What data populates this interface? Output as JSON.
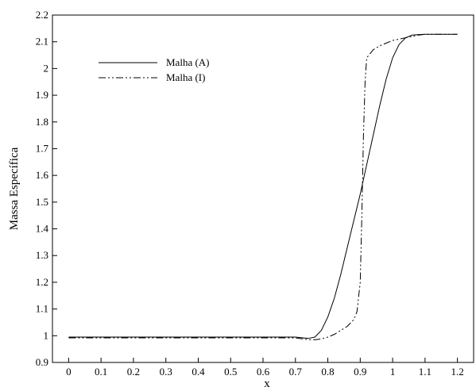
{
  "chart_data": {
    "type": "line",
    "title": "",
    "xlabel": "x",
    "ylabel": "Massa Específica",
    "xlim": [
      -0.05,
      1.25
    ],
    "ylim": [
      0.9,
      2.2
    ],
    "x_ticks": [
      "0",
      "0.1",
      "0.2",
      "0.3",
      "0.4",
      "0.5",
      "0.6",
      "0.7",
      "0.8",
      "0.9",
      "1",
      "1.1",
      "1.2"
    ],
    "y_ticks": [
      "0.9",
      "1",
      "1.1",
      "1.2",
      "1.3",
      "1.4",
      "1.5",
      "1.6",
      "1.7",
      "1.8",
      "1.9",
      "2",
      "2.1",
      "2.2"
    ],
    "grid": false,
    "legend_position": "top-left",
    "series": [
      {
        "name": "Malha (A)",
        "style": "solid",
        "color": "#000000",
        "x": [
          0.0,
          0.1,
          0.2,
          0.3,
          0.4,
          0.5,
          0.6,
          0.7,
          0.74,
          0.76,
          0.78,
          0.8,
          0.82,
          0.84,
          0.86,
          0.88,
          0.9,
          0.92,
          0.94,
          0.96,
          0.98,
          1.0,
          1.02,
          1.04,
          1.06,
          1.08,
          1.1,
          1.2
        ],
        "y": [
          0.995,
          0.995,
          0.995,
          0.995,
          0.995,
          0.995,
          0.995,
          0.995,
          0.99,
          0.995,
          1.02,
          1.07,
          1.14,
          1.23,
          1.33,
          1.43,
          1.53,
          1.64,
          1.75,
          1.86,
          1.96,
          2.04,
          2.09,
          2.115,
          2.125,
          2.127,
          2.128,
          2.128
        ]
      },
      {
        "name": "Malha (I)",
        "style": "dash-dot-dot",
        "color": "#000000",
        "x": [
          0.0,
          0.1,
          0.2,
          0.3,
          0.4,
          0.5,
          0.6,
          0.7,
          0.74,
          0.76,
          0.78,
          0.8,
          0.82,
          0.84,
          0.86,
          0.88,
          0.89,
          0.9,
          0.905,
          0.91,
          0.915,
          0.92,
          0.94,
          0.96,
          0.98,
          1.0,
          1.02,
          1.04,
          1.06,
          1.08,
          1.1,
          1.2
        ],
        "y": [
          0.992,
          0.992,
          0.992,
          0.992,
          0.992,
          0.992,
          0.992,
          0.992,
          0.985,
          0.985,
          0.988,
          0.995,
          1.005,
          1.02,
          1.035,
          1.06,
          1.09,
          1.2,
          1.45,
          1.75,
          1.95,
          2.04,
          2.07,
          2.085,
          2.095,
          2.105,
          2.11,
          2.115,
          2.12,
          2.125,
          2.128,
          2.128
        ]
      }
    ]
  }
}
